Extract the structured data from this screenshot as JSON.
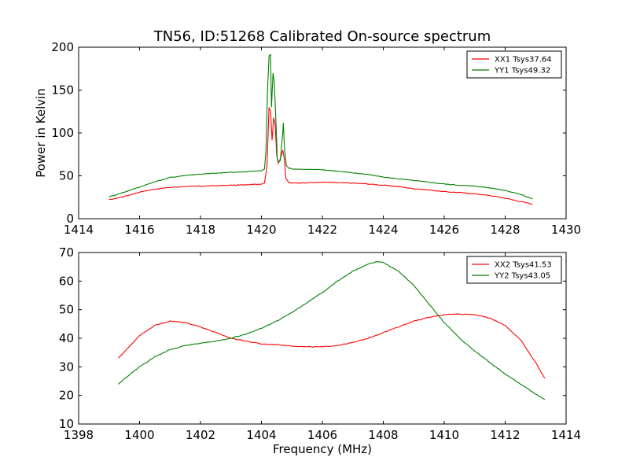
{
  "title": "TN56, ID:51268 Calibrated On-source spectrum",
  "colors": {
    "red": "#ff0000",
    "green": "#008000"
  },
  "chart_data": [
    {
      "type": "line",
      "ylabel": "Power in Kelvin",
      "xlabel": "",
      "xlim": [
        1414,
        1430
      ],
      "ylim": [
        0,
        200
      ],
      "xticks": [
        1414,
        1416,
        1418,
        1420,
        1422,
        1424,
        1426,
        1428,
        1430
      ],
      "yticks": [
        0,
        50,
        100,
        150,
        200
      ],
      "legend_position": "top-right",
      "series": [
        {
          "name": "XX1 Tsys37.64",
          "color": "#ff0000",
          "points": [
            [
              1415.0,
              22
            ],
            [
              1415.5,
              26
            ],
            [
              1416.0,
              31
            ],
            [
              1416.5,
              34.5
            ],
            [
              1417.0,
              36.5
            ],
            [
              1417.5,
              37.5
            ],
            [
              1418.0,
              38
            ],
            [
              1418.5,
              38.5
            ],
            [
              1419.0,
              39
            ],
            [
              1419.5,
              39.5
            ],
            [
              1420.0,
              40.5
            ],
            [
              1420.1,
              42
            ],
            [
              1420.18,
              60
            ],
            [
              1420.25,
              130
            ],
            [
              1420.3,
              125
            ],
            [
              1420.35,
              92
            ],
            [
              1420.4,
              118
            ],
            [
              1420.45,
              110
            ],
            [
              1420.5,
              75
            ],
            [
              1420.55,
              65
            ],
            [
              1420.6,
              68
            ],
            [
              1420.7,
              80
            ],
            [
              1420.75,
              70
            ],
            [
              1420.8,
              47
            ],
            [
              1420.9,
              42
            ],
            [
              1421.0,
              41.5
            ],
            [
              1421.5,
              42
            ],
            [
              1422.0,
              42.5
            ],
            [
              1422.5,
              42
            ],
            [
              1423.0,
              41.5
            ],
            [
              1423.5,
              40.5
            ],
            [
              1424.0,
              39
            ],
            [
              1424.5,
              37.5
            ],
            [
              1425.0,
              35
            ],
            [
              1425.5,
              33.5
            ],
            [
              1426.0,
              31.5
            ],
            [
              1426.5,
              30.5
            ],
            [
              1427.0,
              29
            ],
            [
              1427.5,
              27
            ],
            [
              1428.0,
              24
            ],
            [
              1428.5,
              20
            ],
            [
              1428.9,
              17
            ]
          ]
        },
        {
          "name": "YY1 Tsys49.32",
          "color": "#008000",
          "points": [
            [
              1415.0,
              25.5
            ],
            [
              1415.5,
              31
            ],
            [
              1416.0,
              37
            ],
            [
              1416.5,
              43
            ],
            [
              1417.0,
              48
            ],
            [
              1417.5,
              50.5
            ],
            [
              1418.0,
              52
            ],
            [
              1418.5,
              53
            ],
            [
              1419.0,
              54
            ],
            [
              1419.5,
              54.8
            ],
            [
              1420.0,
              56
            ],
            [
              1420.1,
              58
            ],
            [
              1420.15,
              80
            ],
            [
              1420.2,
              150
            ],
            [
              1420.25,
              190
            ],
            [
              1420.3,
              191
            ],
            [
              1420.33,
              130
            ],
            [
              1420.38,
              170
            ],
            [
              1420.42,
              160
            ],
            [
              1420.48,
              110
            ],
            [
              1420.52,
              70
            ],
            [
              1420.56,
              66
            ],
            [
              1420.62,
              68
            ],
            [
              1420.7,
              100
            ],
            [
              1420.72,
              112
            ],
            [
              1420.76,
              80
            ],
            [
              1420.82,
              62
            ],
            [
              1420.9,
              59
            ],
            [
              1421.0,
              58
            ],
            [
              1421.5,
              57.5
            ],
            [
              1422.0,
              57
            ],
            [
              1422.5,
              55.5
            ],
            [
              1423.0,
              53.5
            ],
            [
              1423.5,
              51.5
            ],
            [
              1424.0,
              48.5
            ],
            [
              1424.5,
              46.5
            ],
            [
              1425.0,
              44.5
            ],
            [
              1425.5,
              42.5
            ],
            [
              1426.0,
              40.5
            ],
            [
              1426.5,
              39
            ],
            [
              1427.0,
              38
            ],
            [
              1427.5,
              36
            ],
            [
              1428.0,
              33
            ],
            [
              1428.5,
              28.5
            ],
            [
              1428.9,
              23
            ]
          ]
        }
      ]
    },
    {
      "type": "line",
      "ylabel": "",
      "xlabel": "Frequency (MHz)",
      "xlim": [
        1398,
        1414
      ],
      "ylim": [
        10,
        70
      ],
      "xticks": [
        1398,
        1400,
        1402,
        1404,
        1406,
        1408,
        1410,
        1412,
        1414
      ],
      "yticks": [
        10,
        20,
        30,
        40,
        50,
        60,
        70
      ],
      "legend_position": "top-right",
      "series": [
        {
          "name": "XX2 Tsys41.53",
          "color": "#ff0000",
          "points": [
            [
              1399.3,
              33
            ],
            [
              1399.7,
              37.5
            ],
            [
              1400.0,
              41
            ],
            [
              1400.5,
              44.5
            ],
            [
              1401.0,
              46
            ],
            [
              1401.5,
              45.5
            ],
            [
              1402.0,
              44
            ],
            [
              1402.5,
              42
            ],
            [
              1403.0,
              40
            ],
            [
              1403.5,
              39
            ],
            [
              1404.0,
              38
            ],
            [
              1404.5,
              37.8
            ],
            [
              1405.0,
              37.3
            ],
            [
              1405.5,
              37
            ],
            [
              1406.0,
              37
            ],
            [
              1406.5,
              37.5
            ],
            [
              1407.0,
              38.5
            ],
            [
              1407.5,
              40
            ],
            [
              1408.0,
              42
            ],
            [
              1408.5,
              44
            ],
            [
              1409.0,
              46
            ],
            [
              1409.5,
              47.3
            ],
            [
              1410.0,
              48.3
            ],
            [
              1410.5,
              48.5
            ],
            [
              1411.0,
              48.3
            ],
            [
              1411.5,
              47
            ],
            [
              1412.0,
              44.5
            ],
            [
              1412.5,
              39.5
            ],
            [
              1413.0,
              31.5
            ],
            [
              1413.3,
              26
            ]
          ]
        },
        {
          "name": "YY2 Tsys43.05",
          "color": "#008000",
          "points": [
            [
              1399.3,
              24
            ],
            [
              1399.7,
              27.5
            ],
            [
              1400.0,
              30
            ],
            [
              1400.5,
              33.5
            ],
            [
              1401.0,
              36
            ],
            [
              1401.5,
              37.5
            ],
            [
              1402.0,
              38.3
            ],
            [
              1402.5,
              39
            ],
            [
              1403.0,
              40
            ],
            [
              1403.5,
              41.5
            ],
            [
              1404.0,
              43.5
            ],
            [
              1404.5,
              46
            ],
            [
              1405.0,
              49
            ],
            [
              1405.5,
              52.5
            ],
            [
              1406.0,
              56
            ],
            [
              1406.5,
              60
            ],
            [
              1407.0,
              63.5
            ],
            [
              1407.5,
              66
            ],
            [
              1407.8,
              66.8
            ],
            [
              1408.0,
              66.5
            ],
            [
              1408.5,
              63.5
            ],
            [
              1409.0,
              58.5
            ],
            [
              1409.5,
              52
            ],
            [
              1410.0,
              45.5
            ],
            [
              1410.5,
              40
            ],
            [
              1411.0,
              35.5
            ],
            [
              1411.5,
              31.5
            ],
            [
              1412.0,
              27.5
            ],
            [
              1412.5,
              24
            ],
            [
              1413.0,
              20.5
            ],
            [
              1413.3,
              18.5
            ]
          ]
        }
      ]
    }
  ]
}
